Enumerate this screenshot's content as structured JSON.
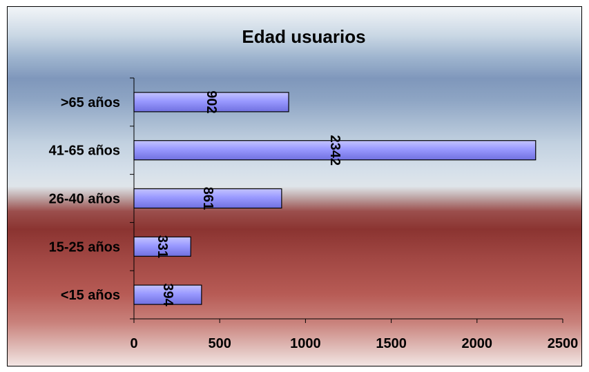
{
  "chart_data": {
    "type": "bar",
    "orientation": "horizontal",
    "title": "Edad usuarios",
    "xlabel": "",
    "ylabel": "",
    "categories": [
      ">65 años",
      "41-65 años",
      "26-40 años",
      "15-25 años",
      "<15 años"
    ],
    "values": [
      902,
      2342,
      861,
      331,
      394
    ],
    "data_labels": [
      "902",
      "2342",
      "861",
      "331",
      "394"
    ],
    "xlim": [
      0,
      2500
    ],
    "x_ticks": [
      0,
      500,
      1000,
      1500,
      2000,
      2500
    ],
    "x_tick_labels": [
      "0",
      "500",
      "1000",
      "1500",
      "2000",
      "2500"
    ],
    "grid": false,
    "legend": "none",
    "bar_color": "#9999ff",
    "data_label_orientation": "rotated-90"
  }
}
